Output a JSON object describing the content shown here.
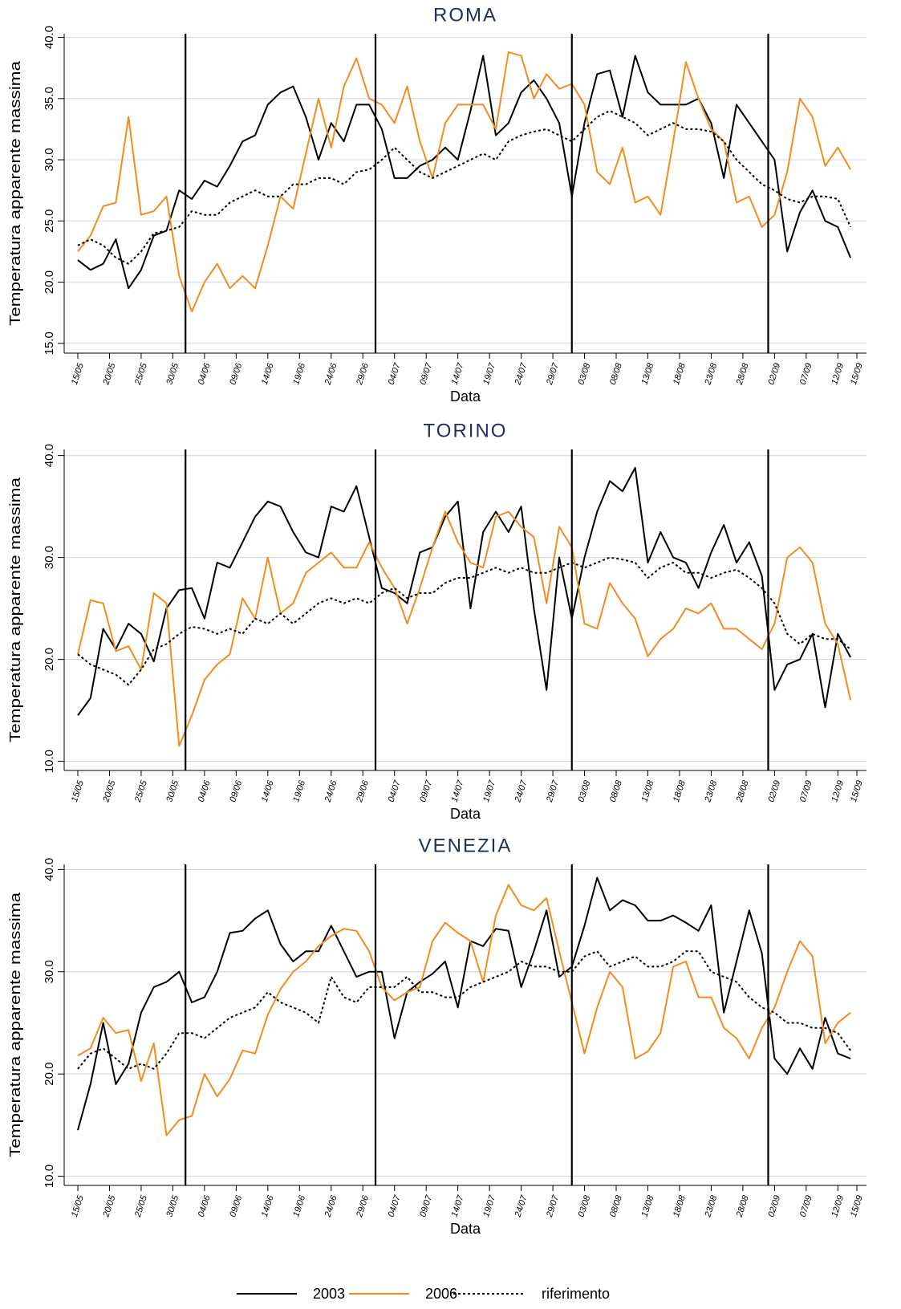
{
  "chart_data": [
    {
      "type": "line",
      "title": "ROMA",
      "x_label": "Data",
      "y_label": "Temperatura apparente massima",
      "x": [
        "15/05",
        "17/05",
        "19/05",
        "21/05",
        "23/05",
        "25/05",
        "27/05",
        "29/05",
        "31/05",
        "02/06",
        "04/06",
        "06/06",
        "08/06",
        "10/06",
        "12/06",
        "14/06",
        "16/06",
        "18/06",
        "20/06",
        "22/06",
        "24/06",
        "26/06",
        "28/06",
        "30/06",
        "02/07",
        "04/07",
        "06/07",
        "08/07",
        "10/07",
        "12/07",
        "14/07",
        "16/07",
        "18/07",
        "20/07",
        "22/07",
        "24/07",
        "26/07",
        "28/07",
        "30/07",
        "01/08",
        "03/08",
        "05/08",
        "07/08",
        "09/08",
        "11/08",
        "13/08",
        "15/08",
        "17/08",
        "19/08",
        "21/08",
        "23/08",
        "25/08",
        "27/08",
        "29/08",
        "31/08",
        "02/09",
        "04/09",
        "06/09",
        "08/09",
        "10/09",
        "12/09",
        "14/09"
      ],
      "xlim": [
        "15/05",
        "15/09"
      ],
      "xticks": [
        "15/05",
        "20/05",
        "25/05",
        "30/05",
        "04/06",
        "09/06",
        "14/06",
        "19/06",
        "24/06",
        "29/06",
        "04/07",
        "09/07",
        "14/07",
        "19/07",
        "24/07",
        "29/07",
        "03/08",
        "08/08",
        "13/08",
        "18/08",
        "23/08",
        "28/08",
        "02/09",
        "07/09",
        "12/09",
        "15/09"
      ],
      "ylim": [
        14.2,
        40.3
      ],
      "yticks": [
        {
          "value": 15,
          "label": "15.0"
        },
        {
          "value": 20,
          "label": "20.0"
        },
        {
          "value": 25,
          "label": "25.0"
        },
        {
          "value": 30,
          "label": "30.0"
        },
        {
          "value": 35,
          "label": "35.0"
        },
        {
          "value": 40,
          "label": "40.0"
        }
      ],
      "grid": true,
      "month_lines": [
        "01/06",
        "01/07",
        "01/08",
        "01/09"
      ],
      "series": [
        {
          "color": "#000000",
          "style": "solid",
          "values": [
            21.8,
            21.0,
            21.5,
            23.5,
            19.5,
            21.0,
            23.8,
            24.2,
            27.5,
            26.8,
            28.3,
            27.8,
            29.5,
            31.5,
            32.0,
            34.5,
            35.5,
            36.0,
            33.5,
            30.0,
            33.0,
            31.5,
            34.5,
            34.5,
            32.5,
            28.5,
            28.5,
            29.5,
            30.0,
            31.0,
            30.0,
            34.0,
            38.5,
            32.0,
            33.0,
            35.5,
            36.5,
            35.0,
            33.0,
            27.0,
            33.0,
            37.0,
            37.3,
            33.5,
            38.5,
            35.5,
            34.5,
            34.5,
            34.5,
            35.0,
            33.0,
            28.5,
            34.5,
            33.0,
            31.5,
            30.0,
            22.5,
            25.7,
            27.5,
            25.0,
            24.5,
            22.0
          ]
        },
        {
          "color": "#f28c1e",
          "style": "solid",
          "values": [
            22.5,
            23.8,
            26.2,
            26.5,
            33.5,
            25.5,
            25.8,
            27.0,
            20.5,
            17.6,
            20.0,
            21.5,
            19.5,
            20.5,
            19.5,
            23.0,
            27.0,
            26.0,
            30.5,
            35.0,
            31.0,
            36.0,
            38.3,
            35.0,
            34.5,
            33.0,
            36.0,
            31.5,
            28.5,
            33.0,
            34.5,
            34.5,
            34.5,
            32.5,
            38.8,
            38.5,
            35.0,
            37.0,
            35.8,
            36.2,
            34.5,
            29.0,
            28.0,
            31.0,
            26.5,
            27.0,
            25.5,
            31.5,
            38.0,
            35.0,
            32.5,
            31.5,
            26.5,
            27.0,
            24.5,
            25.5,
            29.0,
            35.0,
            33.5,
            29.5,
            31.0,
            29.2
          ]
        },
        {
          "color": "#000000",
          "style": "dotted",
          "values": [
            23.0,
            23.5,
            23.0,
            22.0,
            21.5,
            22.5,
            24.0,
            24.2,
            24.5,
            25.8,
            25.5,
            25.5,
            26.5,
            27.0,
            27.5,
            27.0,
            27.0,
            28.0,
            28.0,
            28.5,
            28.5,
            28.0,
            29.0,
            29.2,
            30.0,
            31.0,
            30.0,
            29.0,
            28.5,
            29.0,
            29.5,
            30.0,
            30.5,
            30.0,
            31.5,
            32.0,
            32.3,
            32.5,
            32.0,
            31.5,
            32.5,
            33.5,
            34.0,
            33.5,
            33.0,
            32.0,
            32.5,
            33.0,
            32.5,
            32.5,
            32.3,
            31.5,
            30.0,
            29.0,
            28.0,
            27.5,
            26.8,
            26.5,
            27.0,
            27.0,
            26.8,
            24.5
          ]
        }
      ]
    },
    {
      "type": "line",
      "title": "TORINO",
      "x_label": "Data",
      "y_label": "Temperatura apparente massima",
      "x": [
        "15/05",
        "17/05",
        "19/05",
        "21/05",
        "23/05",
        "25/05",
        "27/05",
        "29/05",
        "31/05",
        "02/06",
        "04/06",
        "06/06",
        "08/06",
        "10/06",
        "12/06",
        "14/06",
        "16/06",
        "18/06",
        "20/06",
        "22/06",
        "24/06",
        "26/06",
        "28/06",
        "30/06",
        "02/07",
        "04/07",
        "06/07",
        "08/07",
        "10/07",
        "12/07",
        "14/07",
        "16/07",
        "18/07",
        "20/07",
        "22/07",
        "24/07",
        "26/07",
        "28/07",
        "30/07",
        "01/08",
        "03/08",
        "05/08",
        "07/08",
        "09/08",
        "11/08",
        "13/08",
        "15/08",
        "17/08",
        "19/08",
        "21/08",
        "23/08",
        "25/08",
        "27/08",
        "29/08",
        "31/08",
        "02/09",
        "04/09",
        "06/09",
        "08/09",
        "10/09",
        "12/09",
        "14/09"
      ],
      "xlim": [
        "15/05",
        "15/09"
      ],
      "xticks": [
        "15/05",
        "20/05",
        "25/05",
        "30/05",
        "04/06",
        "09/06",
        "14/06",
        "19/06",
        "24/06",
        "29/06",
        "04/07",
        "09/07",
        "14/07",
        "19/07",
        "24/07",
        "29/07",
        "03/08",
        "08/08",
        "13/08",
        "18/08",
        "23/08",
        "28/08",
        "02/09",
        "07/09",
        "12/09",
        "15/09"
      ],
      "ylim": [
        9.1,
        40.6
      ],
      "yticks": [
        {
          "value": 10,
          "label": "10.0"
        },
        {
          "value": 20,
          "label": "20.0"
        },
        {
          "value": 30,
          "label": "30.0"
        },
        {
          "value": 40,
          "label": "40.0"
        }
      ],
      "grid": true,
      "month_lines": [
        "01/06",
        "01/07",
        "01/08",
        "01/09"
      ],
      "series": [
        {
          "color": "#000000",
          "style": "solid",
          "values": [
            14.5,
            16.2,
            23.0,
            21.0,
            23.5,
            22.5,
            19.8,
            25.0,
            26.8,
            27.0,
            24.0,
            29.5,
            29.0,
            31.5,
            34.0,
            35.5,
            35.0,
            32.5,
            30.5,
            30.0,
            35.0,
            34.5,
            37.0,
            32.0,
            27.0,
            26.5,
            25.5,
            30.5,
            31.0,
            34.0,
            35.5,
            25.0,
            32.5,
            34.5,
            32.5,
            35.0,
            25.0,
            17.0,
            30.0,
            24.0,
            30.0,
            34.5,
            37.5,
            36.5,
            38.8,
            29.5,
            32.5,
            30.0,
            29.5,
            27.0,
            30.5,
            33.2,
            29.5,
            31.5,
            28.2,
            17.0,
            19.5,
            20.0,
            22.5,
            15.3,
            22.5,
            20.2
          ]
        },
        {
          "color": "#f28c1e",
          "style": "solid",
          "values": [
            20.5,
            25.8,
            25.5,
            20.8,
            21.3,
            19.0,
            26.5,
            25.5,
            11.5,
            14.5,
            18.0,
            19.5,
            20.5,
            26.0,
            24.0,
            30.0,
            24.5,
            25.5,
            28.5,
            29.5,
            30.5,
            29.0,
            29.0,
            31.5,
            29.0,
            27.0,
            23.5,
            27.0,
            31.0,
            34.5,
            31.5,
            29.5,
            29.0,
            34.0,
            34.5,
            33.0,
            32.0,
            25.5,
            33.0,
            31.0,
            23.5,
            23.0,
            27.5,
            25.5,
            24.0,
            20.3,
            22.0,
            23.0,
            25.0,
            24.5,
            25.5,
            23.0,
            23.0,
            22.0,
            21.0,
            23.5,
            30.0,
            31.0,
            29.5,
            23.5,
            21.5,
            16.0
          ]
        },
        {
          "color": "#000000",
          "style": "dotted",
          "values": [
            20.5,
            19.5,
            19.0,
            18.5,
            17.5,
            19.0,
            21.0,
            21.5,
            22.5,
            23.2,
            23.0,
            22.5,
            23.0,
            22.5,
            24.0,
            23.5,
            24.5,
            23.5,
            24.5,
            25.5,
            26.0,
            25.5,
            26.0,
            25.5,
            26.5,
            27.0,
            26.0,
            26.5,
            26.5,
            27.5,
            28.0,
            28.0,
            28.5,
            29.0,
            28.5,
            29.0,
            28.5,
            28.5,
            29.0,
            29.5,
            29.0,
            29.5,
            30.0,
            29.8,
            29.5,
            28.0,
            29.0,
            29.5,
            28.5,
            28.5,
            28.0,
            28.5,
            28.8,
            28.0,
            27.0,
            25.5,
            22.5,
            21.5,
            22.5,
            22.0,
            22.0,
            21.0
          ]
        }
      ]
    },
    {
      "type": "line",
      "title": "VENEZIA",
      "x_label": "Data",
      "y_label": "Temperatura apparente massima",
      "x": [
        "15/05",
        "17/05",
        "19/05",
        "21/05",
        "23/05",
        "25/05",
        "27/05",
        "29/05",
        "31/05",
        "02/06",
        "04/06",
        "06/06",
        "08/06",
        "10/06",
        "12/06",
        "14/06",
        "16/06",
        "18/06",
        "20/06",
        "22/06",
        "24/06",
        "26/06",
        "28/06",
        "30/06",
        "02/07",
        "04/07",
        "06/07",
        "08/07",
        "10/07",
        "12/07",
        "14/07",
        "16/07",
        "18/07",
        "20/07",
        "22/07",
        "24/07",
        "26/07",
        "28/07",
        "30/07",
        "01/08",
        "03/08",
        "05/08",
        "07/08",
        "09/08",
        "11/08",
        "13/08",
        "15/08",
        "17/08",
        "19/08",
        "21/08",
        "23/08",
        "25/08",
        "27/08",
        "29/08",
        "31/08",
        "02/09",
        "04/09",
        "06/09",
        "08/09",
        "10/09",
        "12/09",
        "14/09"
      ],
      "xlim": [
        "15/05",
        "15/09"
      ],
      "xticks": [
        "15/05",
        "20/05",
        "25/05",
        "30/05",
        "04/06",
        "09/06",
        "14/06",
        "19/06",
        "24/06",
        "29/06",
        "04/07",
        "09/07",
        "14/07",
        "19/07",
        "24/07",
        "29/07",
        "03/08",
        "08/08",
        "13/08",
        "18/08",
        "23/08",
        "28/08",
        "02/09",
        "07/09",
        "12/09",
        "15/09"
      ],
      "ylim": [
        9.1,
        40.5
      ],
      "yticks": [
        {
          "value": 10,
          "label": "10.0"
        },
        {
          "value": 20,
          "label": "20.0"
        },
        {
          "value": 30,
          "label": "30.0"
        },
        {
          "value": 40,
          "label": "40.0"
        }
      ],
      "grid": true,
      "month_lines": [
        "01/06",
        "01/07",
        "01/08",
        "01/09"
      ],
      "series": [
        {
          "name": "2003",
          "color": "#000000",
          "style": "solid",
          "values": [
            14.5,
            19.0,
            25.0,
            19.0,
            21.0,
            26.0,
            28.5,
            29.0,
            30.0,
            27.0,
            27.5,
            30.0,
            33.8,
            34.0,
            35.2,
            36.0,
            32.7,
            31.0,
            32.0,
            32.0,
            34.5,
            32.0,
            29.5,
            30.0,
            30.0,
            23.5,
            28.0,
            29.0,
            29.8,
            31.0,
            26.5,
            33.0,
            32.5,
            34.2,
            34.0,
            28.5,
            32.0,
            36.0,
            29.5,
            30.5,
            34.5,
            39.2,
            36.0,
            37.0,
            36.5,
            35.0,
            35.0,
            35.5,
            34.8,
            34.0,
            36.5,
            26.0,
            31.0,
            36.0,
            31.8,
            21.5,
            20.0,
            22.5,
            20.5,
            25.5,
            22.0,
            21.5
          ]
        },
        {
          "name": "2006",
          "color": "#f28c1e",
          "style": "solid",
          "values": [
            21.8,
            22.5,
            25.5,
            24.0,
            24.3,
            19.3,
            23.0,
            14.0,
            15.5,
            15.9,
            20.0,
            17.8,
            19.5,
            22.3,
            22.0,
            25.8,
            28.3,
            30.0,
            31.0,
            32.5,
            33.5,
            34.2,
            34.0,
            32.0,
            28.5,
            27.2,
            28.0,
            28.5,
            33.0,
            34.8,
            33.8,
            33.0,
            29.0,
            35.5,
            38.5,
            36.5,
            36.0,
            37.2,
            32.0,
            27.0,
            22.0,
            26.5,
            30.0,
            28.5,
            21.5,
            22.2,
            24.0,
            30.5,
            31.0,
            27.5,
            27.5,
            24.5,
            23.5,
            21.5,
            24.5,
            26.5,
            30.0,
            33.0,
            31.5,
            23.0,
            25.0,
            26.0
          ]
        },
        {
          "name": "riferimento",
          "color": "#000000",
          "style": "dotted",
          "values": [
            20.5,
            22.0,
            22.5,
            21.5,
            20.5,
            21.0,
            20.5,
            22.0,
            24.0,
            24.0,
            23.5,
            24.5,
            25.5,
            26.0,
            26.5,
            28.0,
            27.0,
            26.5,
            26.0,
            25.0,
            29.5,
            27.5,
            27.0,
            28.5,
            28.5,
            28.5,
            29.5,
            28.0,
            28.0,
            27.5,
            27.5,
            28.5,
            29.0,
            29.5,
            30.0,
            31.0,
            30.5,
            30.5,
            30.0,
            30.0,
            31.5,
            32.0,
            30.5,
            31.0,
            31.5,
            30.5,
            30.5,
            31.0,
            32.0,
            32.0,
            30.0,
            29.5,
            29.0,
            27.5,
            26.5,
            26.0,
            25.0,
            25.0,
            24.5,
            24.5,
            24.0,
            22.3
          ]
        }
      ]
    }
  ]
}
